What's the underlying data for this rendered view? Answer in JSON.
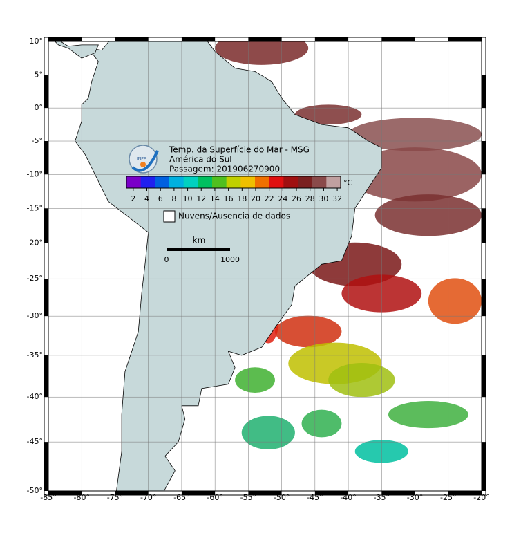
{
  "map": {
    "title_lines": [
      "Temp. da Superfície do Mar - MSG",
      "América do Sul",
      "Passagem: 201906270900"
    ],
    "logo_text": "INPE",
    "lon_lim": [
      -85,
      -20
    ],
    "lat_lim": [
      -50,
      10
    ],
    "lon_ticks": [
      {
        "value": -85,
        "label": "-85°"
      },
      {
        "value": -80,
        "label": "-80°"
      },
      {
        "value": -75,
        "label": "-75°"
      },
      {
        "value": -70,
        "label": "-70°"
      },
      {
        "value": -65,
        "label": "-65°"
      },
      {
        "value": -60,
        "label": "-60°"
      },
      {
        "value": -55,
        "label": "-55°"
      },
      {
        "value": -50,
        "label": "-50°"
      },
      {
        "value": -45,
        "label": "-45°"
      },
      {
        "value": -40,
        "label": "-40°"
      },
      {
        "value": -35,
        "label": "-35°"
      },
      {
        "value": -30,
        "label": "-30°"
      },
      {
        "value": -25,
        "label": "-25°"
      },
      {
        "value": -20,
        "label": "-20°"
      }
    ],
    "lat_ticks": [
      {
        "value": 10,
        "label": "10°"
      },
      {
        "value": 5,
        "label": "5°"
      },
      {
        "value": 0,
        "label": "0°"
      },
      {
        "value": -5,
        "label": "-5°"
      },
      {
        "value": -10,
        "label": "-10°"
      },
      {
        "value": -15,
        "label": "-15°"
      },
      {
        "value": -20,
        "label": "-20°"
      },
      {
        "value": -25,
        "label": "-25°"
      },
      {
        "value": -30,
        "label": "-30°"
      },
      {
        "value": -35,
        "label": "-35°"
      },
      {
        "value": -40,
        "label": "-40°"
      },
      {
        "value": -45,
        "label": "-45°"
      },
      {
        "value": -50,
        "label": "-50°"
      }
    ],
    "grid": true,
    "colorbar": {
      "unit": "°C",
      "lim": [
        1,
        32.5
      ],
      "ticks": [
        2,
        4,
        6,
        8,
        10,
        12,
        14,
        16,
        18,
        20,
        22,
        24,
        26,
        28,
        30,
        32
      ],
      "colors": [
        "#7a00c8",
        "#2020f0",
        "#0060e0",
        "#00b0e0",
        "#00d0c0",
        "#00c060",
        "#50c020",
        "#c0d000",
        "#f0c000",
        "#f07000",
        "#e01010",
        "#a01010",
        "#7a2020",
        "#8a4a4a",
        "#c0a0a0"
      ]
    },
    "legend_label": "Nuvens/Ausencia de dados",
    "scale": {
      "unit": "km",
      "labels": [
        "0",
        "1000"
      ]
    }
  }
}
